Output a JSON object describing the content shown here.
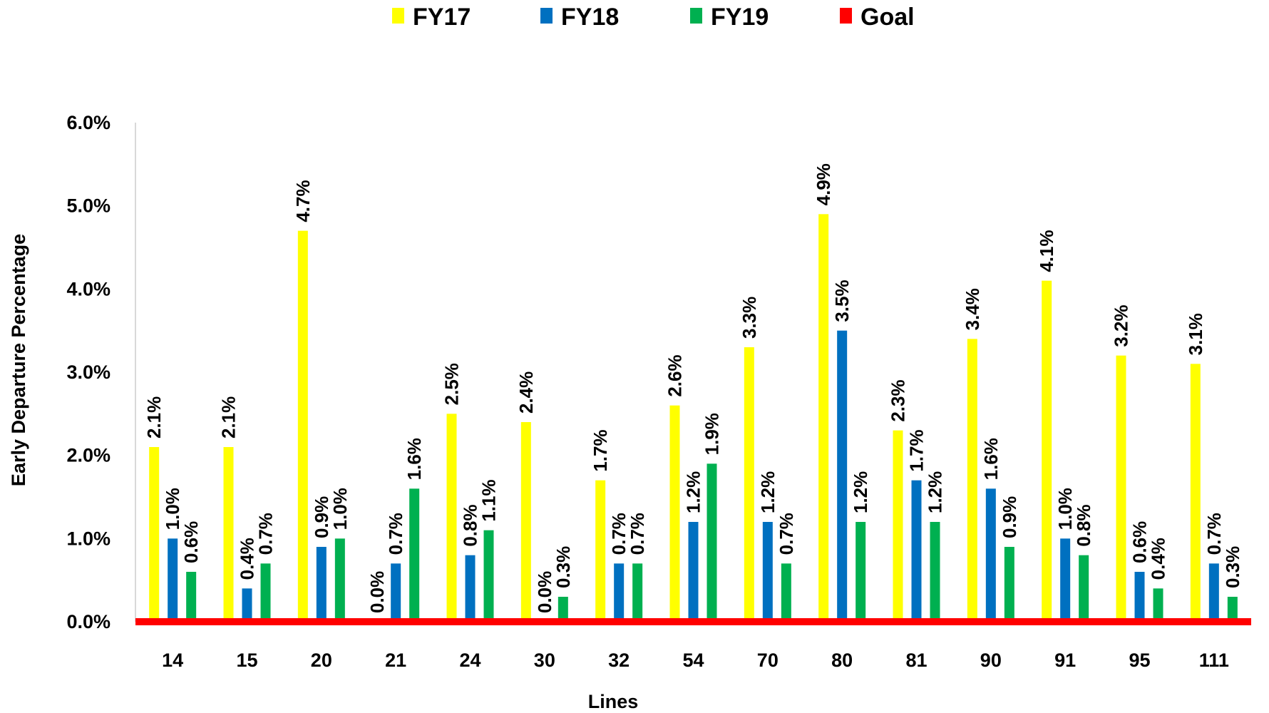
{
  "chart_data": {
    "type": "bar",
    "title": "",
    "xlabel": "Lines",
    "ylabel": "Early Departure Percentage",
    "categories": [
      "14",
      "15",
      "20",
      "21",
      "24",
      "30",
      "32",
      "54",
      "70",
      "80",
      "81",
      "90",
      "91",
      "95",
      "111"
    ],
    "series": [
      {
        "name": "FY17",
        "color": "#FFFF00",
        "values": [
          2.1,
          2.1,
          4.7,
          0.0,
          2.5,
          2.4,
          1.7,
          2.6,
          3.3,
          4.9,
          2.3,
          3.4,
          4.1,
          3.2,
          3.1
        ]
      },
      {
        "name": "FY18",
        "color": "#0070C0",
        "values": [
          1.0,
          0.4,
          0.9,
          0.7,
          0.8,
          0.0,
          0.7,
          1.2,
          1.2,
          3.5,
          1.7,
          1.6,
          1.0,
          0.6,
          0.7
        ]
      },
      {
        "name": "FY19",
        "color": "#00B050",
        "values": [
          0.6,
          0.7,
          1.0,
          1.6,
          1.1,
          0.3,
          0.7,
          1.9,
          0.7,
          1.2,
          1.2,
          0.9,
          0.8,
          0.4,
          0.3
        ]
      }
    ],
    "goal": {
      "name": "Goal",
      "color": "#FF0000",
      "value": 0.0
    },
    "ylim": [
      0,
      6
    ],
    "yticks": [
      "0.0%",
      "1.0%",
      "2.0%",
      "3.0%",
      "4.0%",
      "5.0%",
      "6.0%"
    ],
    "value_suffix": "%",
    "grid": false,
    "legend_position": "top"
  }
}
